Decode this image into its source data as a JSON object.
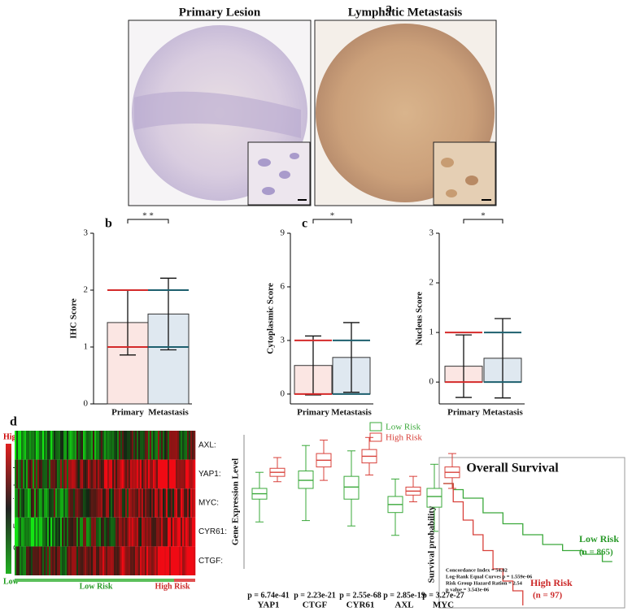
{
  "panel_a": {
    "label": "a",
    "titles": [
      "Primary Lesion",
      "Lymphatic Metastasis"
    ]
  },
  "panel_d": {
    "label": "d",
    "heatmap": {
      "genes": [
        "AXL:",
        "YAP1:",
        "MYC:",
        "CYR61:",
        "CTGF:"
      ],
      "legend_high": "High",
      "legend_low": "Low",
      "legend_title": "Gene Expression Level",
      "group_low": "Low Risk",
      "group_high": "High Risk"
    }
  },
  "chart_data": [
    {
      "type": "bar",
      "panel": "b",
      "ylabel": "IHC Score",
      "categories": [
        "Primary",
        "Metastasis"
      ],
      "values": [
        1.43,
        1.58
      ],
      "errors": [
        0.57,
        0.63
      ],
      "medians": [
        1,
        1
      ],
      "upper_quartiles": [
        2,
        2
      ],
      "colors": [
        "#d42a2a",
        "#1d5f6e"
      ],
      "significance": "* *",
      "ylim": [
        0,
        3
      ],
      "yticks": [
        0,
        1,
        2,
        3
      ]
    },
    {
      "type": "bar",
      "panel": "c",
      "ylabel": "Cytoplasmic Score",
      "categories": [
        "Primary",
        "Metastasis"
      ],
      "values": [
        1.6,
        2.05
      ],
      "errors": [
        1.65,
        1.95
      ],
      "medians": [
        0,
        0
      ],
      "upper_quartiles": [
        3,
        3
      ],
      "colors": [
        "#d42a2a",
        "#1d5f6e"
      ],
      "significance": "*",
      "ylim": [
        -0.55,
        9
      ],
      "yticks": [
        0,
        3,
        6,
        9
      ]
    },
    {
      "type": "bar",
      "ylabel": "Nucleus Score",
      "categories": [
        "Primary",
        "Metastasis"
      ],
      "values": [
        0.32,
        0.48
      ],
      "errors": [
        0.63,
        0.8
      ],
      "medians": [
        0,
        0
      ],
      "upper_quartiles": [
        1,
        1
      ],
      "colors": [
        "#d42a2a",
        "#1d5f6e"
      ],
      "significance": "*",
      "ylim": [
        -0.44,
        3
      ],
      "yticks": [
        0,
        1,
        2,
        3
      ]
    },
    {
      "type": "box",
      "ylabel": "Gene Expression Level",
      "categories": [
        "YAP1",
        "CTGF",
        "CYR61",
        "AXL",
        "MYC"
      ],
      "p_values": [
        "p = 6.74e-41",
        "p = 2.23e-21",
        "p = 2.55e-68",
        "p = 2.85e-19",
        "p = 3.27e-27"
      ],
      "ylim": [
        0,
        10
      ],
      "series": [
        {
          "name": "Low Risk",
          "color": "#3aa83a",
          "low": [
            3.5,
            3.6,
            3.2,
            2.5,
            2.8
          ],
          "q1": [
            5.2,
            6.0,
            5.2,
            4.2,
            4.6
          ],
          "median": [
            5.6,
            6.6,
            6.1,
            4.8,
            5.4
          ],
          "q3": [
            6.0,
            7.3,
            6.9,
            5.4,
            6.0
          ],
          "high": [
            7.2,
            9.2,
            8.8,
            6.7,
            7.8
          ]
        },
        {
          "name": "High Risk",
          "color": "#d8403a",
          "low": [
            6.5,
            6.6,
            7.0,
            5.0,
            6.0
          ],
          "q1": [
            6.9,
            7.6,
            7.9,
            5.5,
            6.8
          ],
          "median": [
            7.2,
            8.1,
            8.4,
            5.8,
            7.2
          ],
          "q3": [
            7.5,
            8.6,
            8.9,
            6.1,
            7.6
          ],
          "high": [
            8.3,
            9.6,
            9.8,
            6.9,
            8.6
          ]
        }
      ]
    },
    {
      "type": "step",
      "title": "Overall Survival",
      "ylabel": "Survival probability",
      "xlim": [
        0,
        9000
      ],
      "ylim": [
        0,
        1
      ],
      "series": [
        {
          "color": "#3aa83a",
          "x": [
            0,
            500,
            1000,
            2000,
            3000,
            4000,
            5000,
            6000,
            7000,
            8000,
            8500
          ],
          "values": [
            1,
            0.95,
            0.88,
            0.76,
            0.67,
            0.58,
            0.5,
            0.45,
            0.42,
            0.36,
            0.36
          ]
        },
        {
          "color": "#d8403a",
          "x": [
            0,
            500,
            1000,
            1500,
            2000,
            2500,
            3000,
            3500,
            4000
          ],
          "values": [
            1,
            0.85,
            0.7,
            0.58,
            0.45,
            0.3,
            0.2,
            0.12,
            0
          ]
        }
      ],
      "annotations": [
        "Low Risk",
        "(n = 865)",
        "High Risk",
        "(n = 97)"
      ],
      "stats": [
        "Concordance Index = 54.82",
        "Log-Rank Equal Curves p = 1.559e-06",
        "Risk Group Hazard Ration = 2.54",
        "p value = 3.543e-06"
      ]
    }
  ]
}
